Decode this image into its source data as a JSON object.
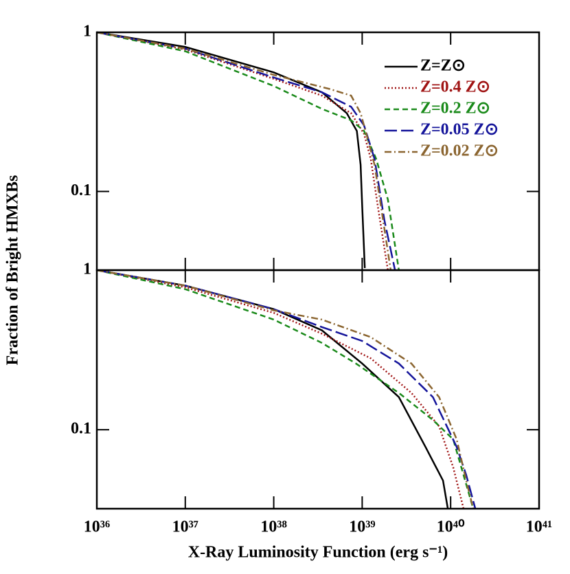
{
  "chart_data": [
    {
      "type": "line",
      "xscale": "log",
      "yscale": "log",
      "xlim": [
        1e+36,
        1e+41
      ],
      "ylim": [
        0.032,
        1
      ],
      "yticks": [
        1,
        0.1
      ],
      "ylabel": "Fraction of Bright HMXBs",
      "legend": "upper right",
      "series": [
        {
          "name": "Z=Z⊙",
          "color": "#000000",
          "dash": "solid",
          "x": [
            1e+36,
            1e+37,
            1e+38,
            3.5e+38,
            6.7e+38,
            8.7e+38,
            9.6e+38,
            1e+39,
            1.07e+39
          ],
          "values": [
            1,
            0.81,
            0.56,
            0.42,
            0.31,
            0.24,
            0.147,
            0.081,
            0.033
          ]
        },
        {
          "name": "Z=0.4 Z⊙",
          "color": "#a01414",
          "dash": "dotted",
          "x": [
            1e+36,
            1e+37,
            1e+38,
            3.5e+38,
            7.5e+38,
            1.05e+39,
            1.25e+39,
            1.5e+39,
            1.95e+39
          ],
          "values": [
            1,
            0.78,
            0.51,
            0.4,
            0.31,
            0.23,
            0.16,
            0.081,
            0.032
          ]
        },
        {
          "name": "Z=0.2 Z⊙",
          "color": "#1a8a1a",
          "dash": "dashed",
          "x": [
            1e+36,
            1e+37,
            1e+38,
            3.5e+38,
            7.5e+38,
            1.05e+39,
            1.44e+39,
            1.95e+39,
            2.6e+39
          ],
          "values": [
            1,
            0.76,
            0.46,
            0.33,
            0.28,
            0.24,
            0.16,
            0.089,
            0.032
          ]
        },
        {
          "name": "Z=0.05 Z⊙",
          "color": "#14149a",
          "dash": "longdash",
          "x": [
            1e+36,
            1e+37,
            1e+38,
            3.5e+38,
            7.5e+38,
            1.05e+39,
            1.38e+39,
            1.78e+39,
            2.35e+39
          ],
          "values": [
            1,
            0.79,
            0.52,
            0.42,
            0.34,
            0.26,
            0.16,
            0.066,
            0.032
          ]
        },
        {
          "name": "Z=0.02 Z⊙",
          "color": "#8b6530",
          "dash": "dashdot",
          "x": [
            1e+36,
            1e+37,
            1e+38,
            4.3e+38,
            7.5e+38,
            9.6e+38,
            1.14e+39,
            1.38e+39,
            1.63e+39,
            2.1e+39
          ],
          "values": [
            1,
            0.79,
            0.54,
            0.44,
            0.4,
            0.31,
            0.22,
            0.147,
            0.081,
            0.032
          ]
        }
      ]
    },
    {
      "type": "line",
      "xscale": "log",
      "yscale": "log",
      "xlim": [
        1e+36,
        1e+41
      ],
      "ylim": [
        0.032,
        1
      ],
      "yticks": [
        1,
        0.1
      ],
      "xticks": [
        {
          "value": 1e+36,
          "label": "10³⁶"
        },
        {
          "value": 1e+37,
          "label": "10³⁷"
        },
        {
          "value": 1e+38,
          "label": "10³⁸"
        },
        {
          "value": 1e+39,
          "label": "10³⁹"
        },
        {
          "value": 1e+40,
          "label": "10⁴⁰"
        },
        {
          "value": 1e+41,
          "label": "10⁴¹"
        }
      ],
      "xlabel": "X-Ray Luminosity Function (erg s⁻¹)",
      "series": [
        {
          "color": "#000000",
          "dash": "solid",
          "x": [
            1e+36,
            1e+37,
            1e+38,
            3.5e+38,
            1e+39,
            2.6e+39,
            5.2e+39,
            8.2e+39,
            9.3e+39
          ],
          "values": [
            1,
            0.8,
            0.57,
            0.42,
            0.26,
            0.16,
            0.078,
            0.048,
            0.032
          ]
        },
        {
          "color": "#a01414",
          "dash": "dotted",
          "x": [
            1e+36,
            1e+37,
            1e+38,
            3.5e+38,
            1.25e+39,
            3.6e+39,
            7.4e+39,
            1.07e+40,
            1.4e+40
          ],
          "values": [
            1,
            0.78,
            0.54,
            0.4,
            0.28,
            0.17,
            0.105,
            0.058,
            0.032
          ]
        },
        {
          "color": "#1a8a1a",
          "dash": "dashed",
          "x": [
            1e+36,
            1e+37,
            1e+38,
            3.5e+38,
            8.5e+38,
            2.6e+39,
            6.3e+39,
            1.07e+40,
            1.4e+40,
            1.8e+40
          ],
          "values": [
            1,
            0.76,
            0.49,
            0.35,
            0.26,
            0.17,
            0.115,
            0.087,
            0.052,
            0.032
          ]
        },
        {
          "color": "#14149a",
          "dash": "longdash",
          "x": [
            1e+36,
            1e+37,
            1e+38,
            3.5e+38,
            1e+39,
            2.6e+39,
            6.3e+39,
            1.17e+40,
            1.5e+40,
            1.9e+40
          ],
          "values": [
            1,
            0.8,
            0.57,
            0.44,
            0.36,
            0.26,
            0.16,
            0.078,
            0.052,
            0.032
          ]
        },
        {
          "color": "#8b6530",
          "dash": "dashdot",
          "x": [
            1e+36,
            1e+37,
            1e+38,
            3.5e+38,
            1.25e+39,
            3.6e+39,
            7.4e+39,
            1.17e+40,
            1.5e+40,
            1.8e+40
          ],
          "values": [
            1,
            0.8,
            0.56,
            0.49,
            0.38,
            0.26,
            0.16,
            0.087,
            0.048,
            0.032
          ]
        }
      ]
    }
  ]
}
